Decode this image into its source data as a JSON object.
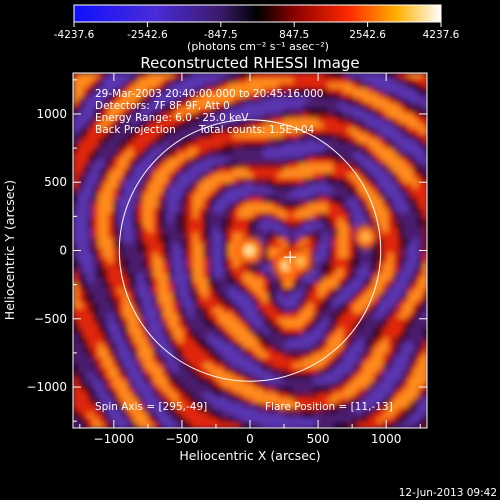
{
  "colorbar": {
    "ticks": [
      "-4237.6",
      "-2542.6",
      "-847.5",
      "847.5",
      "2542.6",
      "4237.6"
    ],
    "units": "(photons cm⁻² s⁻¹ asec⁻²)",
    "range": [
      -4237.6,
      4237.6
    ]
  },
  "chart_data": {
    "type": "heatmap",
    "title": "Reconstructed RHESSI Image",
    "xlabel": "Heliocentric X (arcsec)",
    "ylabel": "Heliocentric Y (arcsec)",
    "xlim": [
      -1300,
      1300
    ],
    "ylim": [
      -1300,
      1300
    ],
    "x_ticks": [
      -1000,
      -500,
      0,
      500,
      1000
    ],
    "y_ticks": [
      -1000,
      -500,
      0,
      500,
      1000
    ],
    "x_tick_labels": [
      "−1000",
      "−500",
      "0",
      "500",
      "1000"
    ],
    "y_tick_labels": [
      "1000",
      "500",
      "0",
      "−500",
      "−1000"
    ],
    "limb_radius_arcsec": 960,
    "limb_center": [
      0,
      0
    ],
    "crosshair_position": [
      295,
      -49
    ],
    "annotations": {
      "time_range": "29-Mar-2003 20:40:00.000 to 20:45:16.000",
      "detectors": "Detectors: 7F 8F 9F, Att 0",
      "energy": "Energy Range: 6.0 - 25.0 keV",
      "method": "Back Projection",
      "counts": "Total counts: 1.5E+04",
      "spin_axis": "Spin Axis = [295,-49]",
      "flare_position": "Flare Position = [11,-13]"
    },
    "sources": [
      {
        "x": -5,
        "y": 0,
        "value": 4237.6
      },
      {
        "x": 270,
        "y": -110,
        "value": 4000
      },
      {
        "x": 370,
        "y": -80,
        "value": 2800
      },
      {
        "x": 850,
        "y": 100,
        "value": 2500
      }
    ]
  },
  "footer": {
    "timestamp": "12-Jun-2013 09:42"
  }
}
